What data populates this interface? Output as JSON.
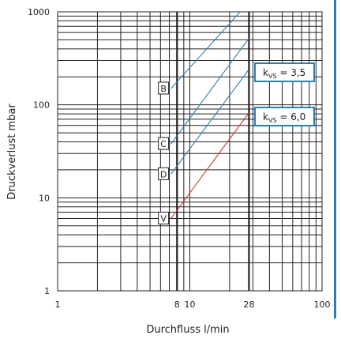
{
  "chart_data": {
    "type": "line",
    "xlabel": "Durchfluss l/min",
    "ylabel": "Druckverlust mbar",
    "x_scale": "log",
    "y_scale": "log",
    "xlim": [
      1,
      100
    ],
    "ylim": [
      1,
      1000
    ],
    "x_tick_labels": [
      "1",
      "8",
      "10",
      "28",
      "100"
    ],
    "y_tick_labels": [
      "1",
      "10",
      "100",
      "1000"
    ],
    "grid": true,
    "series": [
      {
        "name": "B",
        "color": "#2b7fb0",
        "x": [
          7.2,
          24
        ],
        "y": [
          150,
          1000
        ]
      },
      {
        "name": "C",
        "color": "#2b7fb0",
        "x": [
          7.2,
          28
        ],
        "y": [
          38,
          520
        ]
      },
      {
        "name": "D",
        "color": "#2b7fb0",
        "x": [
          7.2,
          28
        ],
        "y": [
          18,
          240
        ]
      },
      {
        "name": "V",
        "color": "#c0392b",
        "x": [
          7.2,
          28
        ],
        "y": [
          6,
          82
        ]
      }
    ],
    "annotations": [
      {
        "id": "kvs35",
        "prefix": "k",
        "sub": "VS",
        "suffix": " = 3,5",
        "color": "#2b7fb0"
      },
      {
        "id": "kvs60",
        "prefix": "k",
        "sub": "VS",
        "suffix": " = 6,0",
        "color": "#2b7fb0"
      }
    ]
  },
  "colors": {
    "grid": "#222222",
    "accent": "#2b7fb0"
  }
}
